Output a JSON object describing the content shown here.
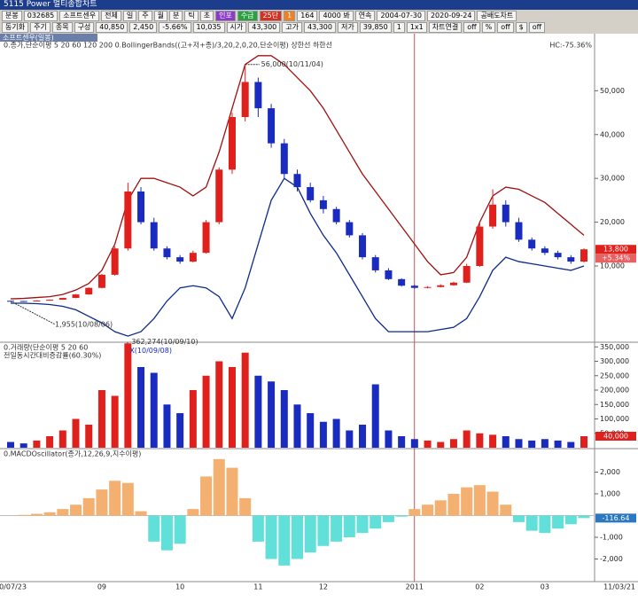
{
  "window_title": "5115 Power 멀티종합차트",
  "toolbar": {
    "row1": [
      "분봉",
      "032685",
      "소프트센우",
      "전체",
      "일",
      "주",
      "월",
      "분",
      "틱",
      "초",
      "인포",
      "수급",
      "25단",
      "1",
      "164",
      "4000 봐",
      "연속",
      "2004-07-30",
      "2020-09-24",
      "공배도차트"
    ],
    "row2": [
      "동기화",
      "주기",
      "종목",
      "구성",
      "40,850",
      "2,450",
      "-5.66%",
      "10,035",
      "시가",
      "43,300",
      "고가",
      "43,300",
      "저가",
      "39,850",
      "1",
      "1x1",
      "차트연결",
      "off",
      "%",
      "off",
      "$",
      "off"
    ]
  },
  "x_axis": {
    "categories": [
      "10/07/23",
      null,
      null,
      null,
      null,
      null,
      null,
      "09",
      null,
      null,
      null,
      null,
      null,
      "10",
      null,
      null,
      null,
      null,
      null,
      "11",
      null,
      null,
      null,
      null,
      "12",
      null,
      null,
      null,
      null,
      null,
      null,
      "2011",
      null,
      null,
      null,
      null,
      "02",
      null,
      null,
      null,
      null,
      "03",
      null,
      null,
      "11/03/21"
    ]
  },
  "chart_data": [
    {
      "type": "candlestick",
      "tab": "소프트센우(일봉)",
      "legend": "0.종가,단순이평 5 20 60 120 200 0.BollingerBands((고+저+종)/3,20,2,0,20,단순이평) 상한선 하한선",
      "legend_right": "HC:-75.36%",
      "up_color": "#e0201c",
      "down_color": "#1a2bc0",
      "ohlc": [
        [
          2050,
          2100,
          1955,
          2000
        ],
        [
          2000,
          2050,
          1960,
          1980
        ],
        [
          1980,
          2150,
          1970,
          2100
        ],
        [
          2100,
          2350,
          2080,
          2300
        ],
        [
          2300,
          2750,
          2280,
          2700
        ],
        [
          2700,
          3600,
          2650,
          3500
        ],
        [
          3500,
          5100,
          3450,
          5000
        ],
        [
          5000,
          8200,
          4900,
          8000
        ],
        [
          8000,
          14500,
          7800,
          14000
        ],
        [
          14000,
          29000,
          13500,
          27000
        ],
        [
          27000,
          28000,
          19500,
          20000
        ],
        [
          20000,
          21000,
          13500,
          14000
        ],
        [
          14000,
          14500,
          11500,
          12000
        ],
        [
          12000,
          12500,
          10500,
          11000
        ],
        [
          11000,
          13500,
          10800,
          13000
        ],
        [
          13000,
          20500,
          12800,
          20000
        ],
        [
          20000,
          32500,
          19500,
          32000
        ],
        [
          32000,
          45000,
          31000,
          44000
        ],
        [
          44000,
          56000,
          43000,
          52000
        ],
        [
          52000,
          53000,
          44000,
          46000
        ],
        [
          46000,
          47000,
          37000,
          38000
        ],
        [
          38000,
          39000,
          30000,
          31000
        ],
        [
          31000,
          32000,
          27000,
          28000
        ],
        [
          28000,
          29000,
          24500,
          25000
        ],
        [
          25000,
          26000,
          22000,
          23000
        ],
        [
          23000,
          23500,
          19500,
          20000
        ],
        [
          20000,
          20500,
          16500,
          17000
        ],
        [
          17000,
          17500,
          11500,
          12000
        ],
        [
          12000,
          12500,
          8500,
          9000
        ],
        [
          9000,
          9500,
          6800,
          7000
        ],
        [
          7000,
          7200,
          5300,
          5500
        ],
        [
          5500,
          5700,
          4800,
          5000
        ],
        [
          5000,
          5400,
          4900,
          5200
        ],
        [
          5200,
          5800,
          5100,
          5600
        ],
        [
          5600,
          6400,
          5500,
          6200
        ],
        [
          6200,
          10500,
          6100,
          10000
        ],
        [
          10000,
          20000,
          9800,
          19000
        ],
        [
          19000,
          27500,
          18500,
          24000
        ],
        [
          24000,
          25000,
          19000,
          20000
        ],
        [
          20000,
          21000,
          15500,
          16000
        ],
        [
          16000,
          16500,
          13500,
          14000
        ],
        [
          14000,
          14500,
          12500,
          13000
        ],
        [
          13000,
          13500,
          11500,
          12000
        ],
        [
          12000,
          12500,
          10500,
          11000
        ],
        [
          11000,
          14000,
          10800,
          13800
        ]
      ],
      "series": [
        {
          "name": "상한선",
          "color": "#a01010",
          "values": [
            2500,
            2600,
            2800,
            3000,
            3500,
            4500,
            6000,
            9000,
            15000,
            25000,
            30000,
            30000,
            29000,
            28000,
            26000,
            28000,
            36000,
            46000,
            56000,
            58000,
            58000,
            56000,
            53000,
            50000,
            46000,
            41000,
            36000,
            31000,
            27000,
            23000,
            19000,
            15000,
            11000,
            8000,
            8500,
            12000,
            20000,
            26000,
            28000,
            27500,
            26000,
            24500,
            22000,
            19500,
            17000
          ]
        },
        {
          "name": "하한선",
          "color": "#0c2a8a",
          "values": [
            1500,
            1500,
            1400,
            1200,
            800,
            0,
            -1500,
            -3000,
            -5000,
            -6000,
            -5000,
            -2000,
            2000,
            5000,
            5500,
            5000,
            3000,
            -2000,
            5000,
            15000,
            25000,
            30000,
            28000,
            22000,
            17000,
            13000,
            8000,
            3000,
            -2000,
            -5000,
            -5000,
            -5000,
            -5000,
            -4500,
            -4000,
            -2000,
            3000,
            9000,
            12000,
            11000,
            10500,
            10000,
            9500,
            9000,
            10000
          ]
        }
      ],
      "annotations": [
        "56,000(10/11/04)",
        "1,955(10/08/06)"
      ],
      "last_labels": [
        "13,800",
        "+5.34%"
      ],
      "ylim": [
        -7000,
        61000
      ],
      "yticks": [
        {
          "value": 10000,
          "label": "10,000"
        },
        {
          "value": 20000,
          "label": "20,000"
        },
        {
          "value": 30000,
          "label": "30,000"
        },
        {
          "value": 40000,
          "label": "40,000"
        },
        {
          "value": 50000,
          "label": "50,000"
        }
      ]
    },
    {
      "type": "bar",
      "legend": "0.거래량(단순이평 5 20 60",
      "legend2": "전일동시간대비증감률(60.30%)",
      "up_color": "#e0201c",
      "down_color": "#1a2bc0",
      "values": [
        20000,
        15000,
        25000,
        40000,
        60000,
        100000,
        80000,
        200000,
        180000,
        362274,
        280000,
        260000,
        150000,
        120000,
        200000,
        250000,
        300000,
        280000,
        330000,
        250000,
        230000,
        200000,
        150000,
        120000,
        90000,
        100000,
        60000,
        80000,
        220000,
        60000,
        40000,
        30000,
        25000,
        20000,
        30000,
        60000,
        50000,
        45000,
        40000,
        30000,
        25000,
        30000,
        25000,
        20000,
        40000
      ],
      "annotations": [
        "362,274(10/09/10)",
        "X(10/09/08)"
      ],
      "last_label": "40,000",
      "ylim": [
        0,
        360000
      ],
      "yticks": [
        {
          "value": 50000,
          "label": "50,000"
        },
        {
          "value": 100000,
          "label": "100,000"
        },
        {
          "value": 150000,
          "label": "150,000"
        },
        {
          "value": 200000,
          "label": "200,000"
        },
        {
          "value": 250000,
          "label": "250,000"
        },
        {
          "value": 300000,
          "label": "300,000"
        },
        {
          "value": 350000,
          "label": "350,000"
        }
      ]
    },
    {
      "type": "oscillator",
      "legend": "0.MACDOscillator(종가,12,26,9,지수이평)",
      "pos_color": "#f4b070",
      "neg_color": "#60e0d8",
      "values": [
        0,
        30,
        80,
        150,
        300,
        500,
        800,
        1200,
        1600,
        1500,
        200,
        -1200,
        -1600,
        -1300,
        300,
        1800,
        2600,
        2200,
        800,
        -1200,
        -2000,
        -2300,
        -2000,
        -1700,
        -1400,
        -1200,
        -1000,
        -800,
        -600,
        -300,
        -50,
        300,
        500,
        700,
        1000,
        1300,
        1400,
        1100,
        500,
        -300,
        -700,
        -800,
        -600,
        -400,
        -116.64
      ],
      "last_label": "-116.64",
      "ylim": [
        -3000,
        3000
      ],
      "yticks": [
        {
          "value": 2000,
          "label": "2,000"
        },
        {
          "value": 1000,
          "label": "1,000"
        },
        {
          "value": -1000,
          "label": "-1,000"
        },
        {
          "value": -2000,
          "label": "-2,000"
        }
      ]
    }
  ]
}
